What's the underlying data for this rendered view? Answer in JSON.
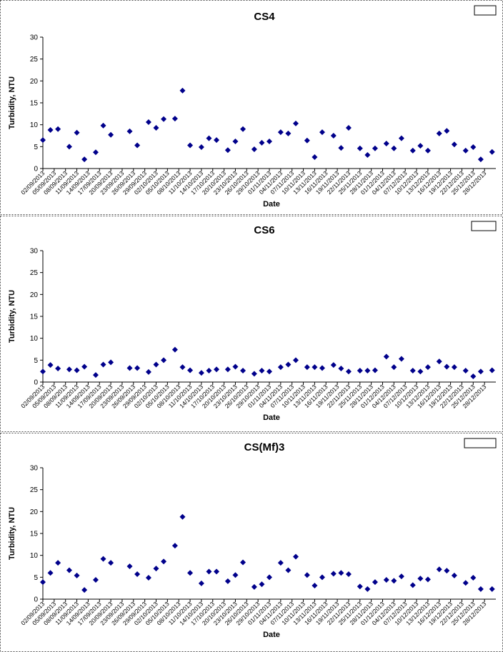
{
  "chart_data": [
    {
      "type": "scatter",
      "title": "CS4",
      "x_label": "Date",
      "y_label": "Turbidity, NTU",
      "color": "#00008b",
      "x": [
        "02/09/2013",
        "04/09/2013",
        "06/09/2013",
        "09/09/2013",
        "11/09/2013",
        "13/09/2013",
        "16/09/2013",
        "18/09/2013",
        "20/09/2013",
        "25/09/2013",
        "27/09/2013",
        "30/09/2013",
        "02/10/2013",
        "04/10/2013",
        "07/10/2013",
        "09/10/2013",
        "11/10/2013",
        "14/10/2013",
        "16/10/2013",
        "18/10/2013",
        "21/10/2013",
        "23/10/2013",
        "25/10/2013",
        "28/10/2013",
        "30/10/2013",
        "01/11/2013",
        "04/11/2013",
        "06/11/2013",
        "08/11/2013",
        "11/11/2013",
        "13/11/2013",
        "15/11/2013",
        "18/11/2013",
        "20/11/2013",
        "22/11/2013",
        "25/11/2013",
        "27/11/2013",
        "29/11/2013",
        "02/12/2013",
        "04/12/2013",
        "06/12/2013",
        "09/12/2013",
        "11/12/2013",
        "13/12/2013",
        "16/12/2013",
        "18/12/2013",
        "20/12/2013",
        "23/12/2013",
        "25/12/2013",
        "27/12/2013",
        "30/12/2013"
      ],
      "values": [
        6.5,
        8.8,
        9.0,
        5.0,
        8.2,
        2.1,
        3.7,
        9.8,
        7.7,
        8.5,
        5.3,
        10.6,
        9.3,
        11.3,
        11.4,
        17.8,
        5.3,
        4.9,
        6.9,
        6.5,
        4.2,
        6.2,
        9.0,
        4.4,
        5.9,
        6.2,
        8.3,
        8.0,
        10.3,
        6.4,
        2.6,
        8.3,
        7.5,
        4.7,
        9.3,
        4.6,
        3.1,
        4.6,
        5.7,
        4.6,
        6.9,
        4.1,
        5.2,
        4.1,
        8.0,
        8.6,
        5.5,
        4.1,
        4.9,
        2.1,
        3.8
      ],
      "xlim": [
        "02/09/2013",
        "31/12/2013"
      ],
      "xticks": [
        "02/09/2013",
        "05/09/2013",
        "08/09/2013",
        "11/09/2013",
        "14/09/2013",
        "17/09/2013",
        "20/09/2013",
        "23/09/2013",
        "26/09/2013",
        "29/09/2013",
        "02/10/2013",
        "05/10/2013",
        "08/10/2013",
        "11/10/2013",
        "14/10/2013",
        "17/10/2013",
        "20/10/2013",
        "23/10/2013",
        "26/10/2013",
        "29/10/2013",
        "01/11/2013",
        "04/11/2013",
        "07/11/2013",
        "10/11/2013",
        "13/11/2013",
        "16/11/2013",
        "19/11/2013",
        "22/11/2013",
        "25/11/2013",
        "28/11/2013",
        "01/12/2013",
        "04/12/2013",
        "07/12/2013",
        "10/12/2013",
        "13/12/2013",
        "16/12/2013",
        "19/12/2013",
        "22/12/2013",
        "25/12/2013",
        "28/12/2013"
      ],
      "ylim": [
        0,
        30
      ],
      "yticks": [
        0,
        5,
        10,
        15,
        20,
        25,
        30
      ]
    },
    {
      "type": "scatter",
      "title": "CS6",
      "x_label": "Date",
      "y_label": "Turbidity, NTU",
      "color": "#00008b",
      "x": [
        "02/09/2013",
        "04/09/2013",
        "06/09/2013",
        "09/09/2013",
        "11/09/2013",
        "13/09/2013",
        "16/09/2013",
        "18/09/2013",
        "20/09/2013",
        "25/09/2013",
        "27/09/2013",
        "30/09/2013",
        "02/10/2013",
        "04/10/2013",
        "07/10/2013",
        "09/10/2013",
        "11/10/2013",
        "14/10/2013",
        "16/10/2013",
        "18/10/2013",
        "21/10/2013",
        "23/10/2013",
        "25/10/2013",
        "28/10/2013",
        "30/10/2013",
        "01/11/2013",
        "04/11/2013",
        "06/11/2013",
        "08/11/2013",
        "11/11/2013",
        "13/11/2013",
        "15/11/2013",
        "18/11/2013",
        "20/11/2013",
        "22/11/2013",
        "25/11/2013",
        "27/11/2013",
        "29/11/2013",
        "02/12/2013",
        "04/12/2013",
        "06/12/2013",
        "09/12/2013",
        "11/12/2013",
        "13/12/2013",
        "16/12/2013",
        "18/12/2013",
        "20/12/2013",
        "23/12/2013",
        "25/12/2013",
        "27/12/2013",
        "30/12/2013"
      ],
      "values": [
        2.4,
        3.9,
        3.1,
        2.9,
        2.7,
        3.5,
        1.6,
        4.0,
        4.5,
        3.2,
        3.2,
        2.3,
        4.0,
        5.0,
        7.4,
        3.4,
        2.7,
        2.1,
        2.6,
        2.9,
        2.9,
        3.5,
        2.6,
        1.9,
        2.6,
        2.4,
        3.4,
        4.0,
        5.0,
        3.4,
        3.4,
        3.2,
        3.9,
        3.1,
        2.4,
        2.6,
        2.6,
        2.7,
        5.8,
        3.4,
        5.3,
        2.6,
        2.4,
        3.4,
        4.7,
        3.5,
        3.4,
        2.6,
        1.3,
        2.4,
        2.7
      ],
      "xlim": [
        "02/09/2013",
        "31/12/2013"
      ],
      "xticks": [
        "02/09/2013",
        "05/09/2013",
        "08/09/2013",
        "11/09/2013",
        "14/09/2013",
        "17/09/2013",
        "20/09/2013",
        "23/09/2013",
        "26/09/2013",
        "29/09/2013",
        "02/10/2013",
        "05/10/2013",
        "08/10/2013",
        "11/10/2013",
        "14/10/2013",
        "17/10/2013",
        "20/10/2013",
        "23/10/2013",
        "26/10/2013",
        "29/10/2013",
        "01/11/2013",
        "04/11/2013",
        "07/11/2013",
        "10/11/2013",
        "13/11/2013",
        "16/11/2013",
        "19/11/2013",
        "22/11/2013",
        "25/11/2013",
        "28/11/2013",
        "01/12/2013",
        "04/12/2013",
        "07/12/2013",
        "10/12/2013",
        "13/12/2013",
        "16/12/2013",
        "19/12/2013",
        "22/12/2013",
        "25/12/2013",
        "28/12/2013"
      ],
      "ylim": [
        0,
        30
      ],
      "yticks": [
        0,
        5,
        10,
        15,
        20,
        25,
        30
      ]
    },
    {
      "type": "scatter",
      "title": "CS(Mf)3",
      "x_label": "Date",
      "y_label": "Turbidity, NTU",
      "color": "#00008b",
      "x": [
        "02/09/2013",
        "04/09/2013",
        "06/09/2013",
        "09/09/2013",
        "11/09/2013",
        "13/09/2013",
        "16/09/2013",
        "18/09/2013",
        "20/09/2013",
        "25/09/2013",
        "27/09/2013",
        "30/09/2013",
        "02/10/2013",
        "04/10/2013",
        "07/10/2013",
        "09/10/2013",
        "11/10/2013",
        "14/10/2013",
        "16/10/2013",
        "18/10/2013",
        "21/10/2013",
        "23/10/2013",
        "25/10/2013",
        "28/10/2013",
        "30/10/2013",
        "01/11/2013",
        "04/11/2013",
        "06/11/2013",
        "08/11/2013",
        "11/11/2013",
        "13/11/2013",
        "15/11/2013",
        "18/11/2013",
        "20/11/2013",
        "22/11/2013",
        "25/11/2013",
        "27/11/2013",
        "29/11/2013",
        "02/12/2013",
        "04/12/2013",
        "06/12/2013",
        "09/12/2013",
        "11/12/2013",
        "13/12/2013",
        "16/12/2013",
        "18/12/2013",
        "20/12/2013",
        "23/12/2013",
        "25/12/2013",
        "27/12/2013",
        "30/12/2013"
      ],
      "values": [
        3.9,
        6.0,
        8.3,
        6.6,
        5.4,
        2.1,
        4.4,
        9.2,
        8.3,
        7.5,
        5.7,
        4.9,
        7.0,
        8.6,
        12.2,
        18.8,
        6.0,
        3.6,
        6.3,
        6.3,
        4.1,
        5.5,
        8.4,
        2.8,
        3.4,
        5.0,
        8.3,
        6.6,
        9.7,
        5.5,
        3.1,
        5.0,
        5.8,
        6.0,
        5.7,
        2.9,
        2.3,
        3.9,
        4.4,
        4.2,
        5.2,
        3.2,
        4.7,
        4.5,
        6.8,
        6.5,
        5.4,
        3.7,
        4.9,
        2.3,
        2.3
      ],
      "xlim": [
        "02/09/2013",
        "31/12/2013"
      ],
      "xticks": [
        "02/09/2013",
        "05/09/2013",
        "08/09/2013",
        "11/09/2013",
        "14/09/2013",
        "17/09/2013",
        "20/09/2013",
        "23/09/2013",
        "26/09/2013",
        "29/09/2013",
        "02/10/2013",
        "05/10/2013",
        "08/10/2013",
        "11/10/2013",
        "14/10/2013",
        "17/10/2013",
        "20/10/2013",
        "23/10/2013",
        "26/10/2013",
        "29/10/2013",
        "01/11/2013",
        "04/11/2013",
        "07/11/2013",
        "10/11/2013",
        "13/11/2013",
        "16/11/2013",
        "19/11/2013",
        "22/11/2013",
        "25/11/2013",
        "28/11/2013",
        "01/12/2013",
        "04/12/2013",
        "07/12/2013",
        "10/12/2013",
        "13/12/2013",
        "16/12/2013",
        "19/12/2013",
        "22/12/2013",
        "25/12/2013",
        "28/12/2013"
      ],
      "ylim": [
        0,
        30
      ],
      "yticks": [
        0,
        5,
        10,
        15,
        20,
        25,
        30
      ]
    }
  ]
}
